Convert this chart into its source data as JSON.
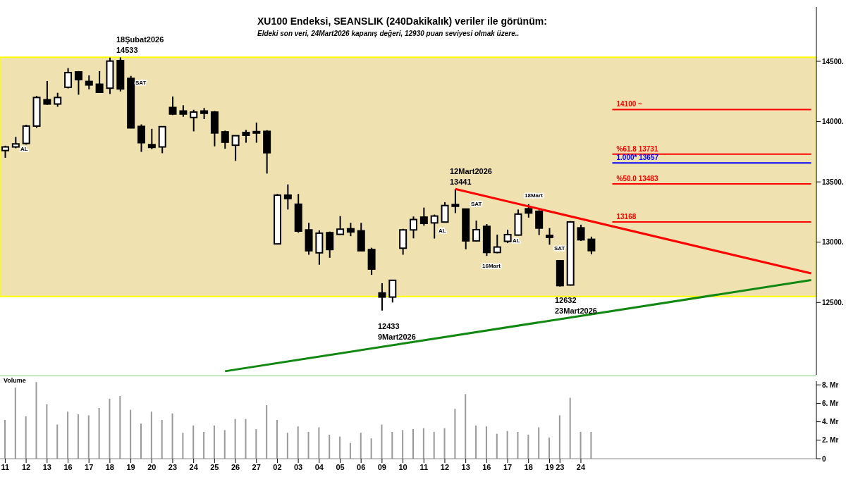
{
  "chart_data": [
    {
      "type": "candlestick",
      "title": "XU100 Endeksi, SEANSLIK (240Dakikalık) veriler ile görünüm:",
      "subtitle": "Eldeki son veri, 24Mart2026 kapanış değeri, 12930 puan seviyesi olmak üzere..",
      "categories": [
        "11",
        null,
        "12",
        null,
        "13",
        null,
        "16",
        null,
        "17",
        null,
        "18",
        null,
        "19",
        null,
        "20",
        null,
        "23",
        null,
        "24",
        null,
        "25",
        null,
        "26",
        null,
        "27",
        null,
        "02",
        null,
        "03",
        null,
        "04",
        null,
        "05",
        null,
        "06",
        null,
        "09",
        null,
        "10",
        null,
        "11",
        null,
        "12",
        null,
        "13",
        null,
        "16",
        null,
        "17",
        null,
        "18",
        null,
        "19",
        "23",
        null,
        "24",
        null,
        null,
        null,
        null,
        null,
        null,
        null,
        null,
        null,
        null,
        null,
        null,
        null,
        null,
        null,
        null,
        null,
        null,
        null,
        null,
        null,
        null
      ],
      "ohlc": [
        [
          13760,
          13800,
          13700,
          13790
        ],
        [
          13790,
          13873,
          13779,
          13815
        ],
        [
          13819,
          13974,
          13809,
          13963
        ],
        [
          13963,
          14213,
          13948,
          14200
        ],
        [
          14181,
          14337,
          14140,
          14146
        ],
        [
          14146,
          14239,
          14123,
          14200
        ],
        [
          14285,
          14444,
          14275,
          14406
        ],
        [
          14412,
          14419,
          14223,
          14348
        ],
        [
          14333,
          14383,
          14268,
          14304
        ],
        [
          14310,
          14419,
          14243,
          14243
        ],
        [
          14277,
          14531,
          14229,
          14502
        ],
        [
          14506,
          14533,
          14250,
          14271
        ],
        [
          14358,
          14379,
          13944,
          13948
        ],
        [
          13960,
          13977,
          13749,
          13825
        ],
        [
          13809,
          13940,
          13772,
          13786
        ],
        [
          13790,
          13958,
          13738,
          13958
        ],
        [
          14117,
          14208,
          14054,
          14063
        ],
        [
          14088,
          14136,
          14040,
          14063
        ],
        [
          14034,
          14098,
          13919,
          14079
        ],
        [
          14088,
          14113,
          14021,
          14069
        ],
        [
          14079,
          14088,
          13795,
          13906
        ],
        [
          13915,
          13925,
          13775,
          13829
        ],
        [
          13804,
          13883,
          13675,
          13883
        ],
        [
          13910,
          13931,
          13825,
          13887
        ],
        [
          13917,
          13992,
          13825,
          13912
        ],
        [
          13919,
          13929,
          13569,
          13742
        ],
        [
          12986,
          13400,
          12986,
          13390
        ],
        [
          13390,
          13479,
          13271,
          13362
        ],
        [
          13315,
          13400,
          13079,
          13092
        ],
        [
          13102,
          13160,
          12896,
          12929
        ],
        [
          12912,
          13098,
          12813,
          13075
        ],
        [
          13079,
          13088,
          12871,
          12939
        ],
        [
          13065,
          13217,
          13065,
          13108
        ],
        [
          13111,
          13160,
          13050,
          13085
        ],
        [
          13094,
          13160,
          12925,
          12929
        ],
        [
          12939,
          12954,
          12729,
          12777
        ],
        [
          12579,
          12660,
          12433,
          12545
        ],
        [
          12545,
          12684,
          12500,
          12684
        ],
        [
          12950,
          13111,
          12896,
          13102
        ],
        [
          13102,
          13213,
          13032,
          13188
        ],
        [
          13208,
          13287,
          13137,
          13156
        ],
        [
          13160,
          13229,
          13030,
          13217
        ],
        [
          13167,
          13332,
          13167,
          13304
        ],
        [
          13312,
          13441,
          13241,
          13298
        ],
        [
          13275,
          13275,
          12941,
          13011
        ],
        [
          13011,
          13179,
          13005,
          13104
        ],
        [
          13131,
          13150,
          12886,
          12915
        ],
        [
          12915,
          13063,
          12908,
          12960
        ],
        [
          13007,
          13104,
          12992,
          13063
        ],
        [
          13059,
          13271,
          13055,
          13233
        ],
        [
          13277,
          13315,
          13204,
          13242
        ],
        [
          13256,
          13265,
          13059,
          13117
        ],
        [
          13056,
          13117,
          12979,
          13040
        ],
        [
          12846,
          12852,
          12632,
          12640
        ],
        [
          12645,
          13175,
          12640,
          13168
        ],
        [
          13119,
          13145,
          13010,
          13020
        ],
        [
          13024,
          13046,
          12899,
          12930
        ],
        null,
        null,
        null,
        null,
        null,
        null,
        null,
        null,
        null,
        null,
        null,
        null,
        null,
        null,
        null,
        null,
        null,
        null,
        null,
        null,
        null
      ],
      "series": [
        {
          "type": "line",
          "color": "#ff0000",
          "values": [
            null,
            null,
            null,
            null,
            null,
            null,
            null,
            null,
            null,
            null,
            null,
            null,
            null,
            null,
            null,
            null,
            null,
            null,
            null,
            null,
            null,
            null,
            null,
            null,
            null,
            null,
            null,
            null,
            null,
            null,
            null,
            null,
            null,
            null,
            null,
            null,
            null,
            null,
            null,
            null,
            null,
            null,
            null,
            13441,
            null,
            null,
            null,
            null,
            null,
            null,
            null,
            null,
            null,
            null,
            null,
            null,
            null,
            null,
            null,
            null,
            null,
            null,
            null,
            null,
            null,
            null,
            null,
            null,
            null,
            null,
            null,
            null,
            null,
            null,
            null,
            null,
            null,
            12741
          ]
        },
        {
          "type": "line",
          "color": "#118811",
          "values": [
            null,
            null,
            null,
            null,
            null,
            null,
            null,
            null,
            null,
            null,
            null,
            null,
            null,
            null,
            null,
            null,
            null,
            null,
            null,
            null,
            null,
            11930,
            null,
            null,
            null,
            null,
            null,
            null,
            null,
            null,
            null,
            null,
            null,
            null,
            null,
            null,
            null,
            null,
            null,
            null,
            null,
            null,
            null,
            null,
            null,
            null,
            null,
            null,
            null,
            null,
            null,
            null,
            null,
            null,
            null,
            null,
            null,
            null,
            null,
            null,
            null,
            null,
            null,
            null,
            null,
            null,
            null,
            null,
            null,
            null,
            null,
            null,
            null,
            null,
            null,
            null,
            null,
            12686
          ]
        }
      ],
      "ylim": [
        11900,
        14950
      ],
      "yticks": [
        {
          "value": 12500,
          "label": "12500."
        },
        {
          "value": 13000,
          "label": "13000."
        },
        {
          "value": 13500,
          "label": "13500."
        },
        {
          "value": 14000,
          "label": "14000."
        },
        {
          "value": 14500,
          "label": "14500."
        }
      ],
      "tick_labels": "y",
      "grid": false,
      "legend": false,
      "bands": [
        {
          "axis": "y",
          "from": 12550,
          "to": 14533,
          "color": "#efe2b0"
        }
      ],
      "ref_lines": [
        {
          "axis": "y",
          "value": 14100,
          "label": "14100 ~",
          "color": "#ff0000"
        },
        {
          "axis": "y",
          "value": 13731,
          "label": "%61.8   13731",
          "color": "#ff0000"
        },
        {
          "axis": "y",
          "value": 13657,
          "label": "1.000*   13657",
          "color": "#0000ff"
        },
        {
          "axis": "y",
          "value": 13483,
          "label": "%50.0   13483",
          "color": "#ff0000"
        },
        {
          "axis": "y",
          "value": 13168,
          "label": "13168",
          "color": "#ff0000"
        }
      ],
      "annotations": [
        "18Şubat2026",
        "14533",
        "12Mart2026",
        "13441",
        "12433",
        "9Mart2026",
        "12632",
        "23Mart2026",
        "18Mart",
        "16Mart",
        "AL",
        "SAT",
        "AL",
        "SAT",
        "AL",
        "SAT"
      ]
    },
    {
      "type": "bar",
      "title": "Volume",
      "color": "#999999",
      "categories": [
        "11",
        null,
        "12",
        null,
        "13",
        null,
        "16",
        null,
        "17",
        null,
        "18",
        null,
        "19",
        null,
        "20",
        null,
        "23",
        null,
        "24",
        null,
        "25",
        null,
        "26",
        null,
        "27",
        null,
        "02",
        null,
        "03",
        null,
        "04",
        null,
        "05",
        null,
        "06",
        null,
        "09",
        null,
        "10",
        null,
        "11",
        null,
        "12",
        null,
        "13",
        null,
        "16",
        null,
        "17",
        null,
        "18",
        null,
        "19",
        "23",
        null,
        "24",
        null,
        null,
        null,
        null,
        null,
        null,
        null,
        null,
        null,
        null,
        null,
        null,
        null,
        null,
        null,
        null,
        null,
        null,
        null,
        null,
        null,
        null
      ],
      "values": [
        4.2,
        7.7,
        4.6,
        8.3,
        5.9,
        3.7,
        5.1,
        4.8,
        4.7,
        5.5,
        6.5,
        6.8,
        5.3,
        3.8,
        5.1,
        4.2,
        4.9,
        2.8,
        3.6,
        2.9,
        3.6,
        3.1,
        4.3,
        4.3,
        3.2,
        5.8,
        4.2,
        2.8,
        3.5,
        2.9,
        3.4,
        2.6,
        2.4,
        1.7,
        2.8,
        2.2,
        3.7,
        2.9,
        3.1,
        3.2,
        3.3,
        2.9,
        3.3,
        5.4,
        7.0,
        3.6,
        3.5,
        2.7,
        3.0,
        2.9,
        2.6,
        3.4,
        2.3,
        4.7,
        6.6,
        2.9,
        2.9,
        null,
        null,
        null,
        null,
        null,
        null,
        null,
        null,
        null,
        null,
        null,
        null,
        null,
        null,
        null,
        null,
        null,
        null,
        null,
        null,
        null
      ],
      "ylim": [
        0,
        8.4
      ],
      "yticks": [
        0,
        {
          "value": 2,
          "label": "2. Mr"
        },
        {
          "value": 4,
          "label": "4. Mr"
        },
        {
          "value": 6,
          "label": "6. Mr"
        },
        {
          "value": 8,
          "label": "8. Mr"
        }
      ],
      "grid": false,
      "legend": false
    }
  ]
}
